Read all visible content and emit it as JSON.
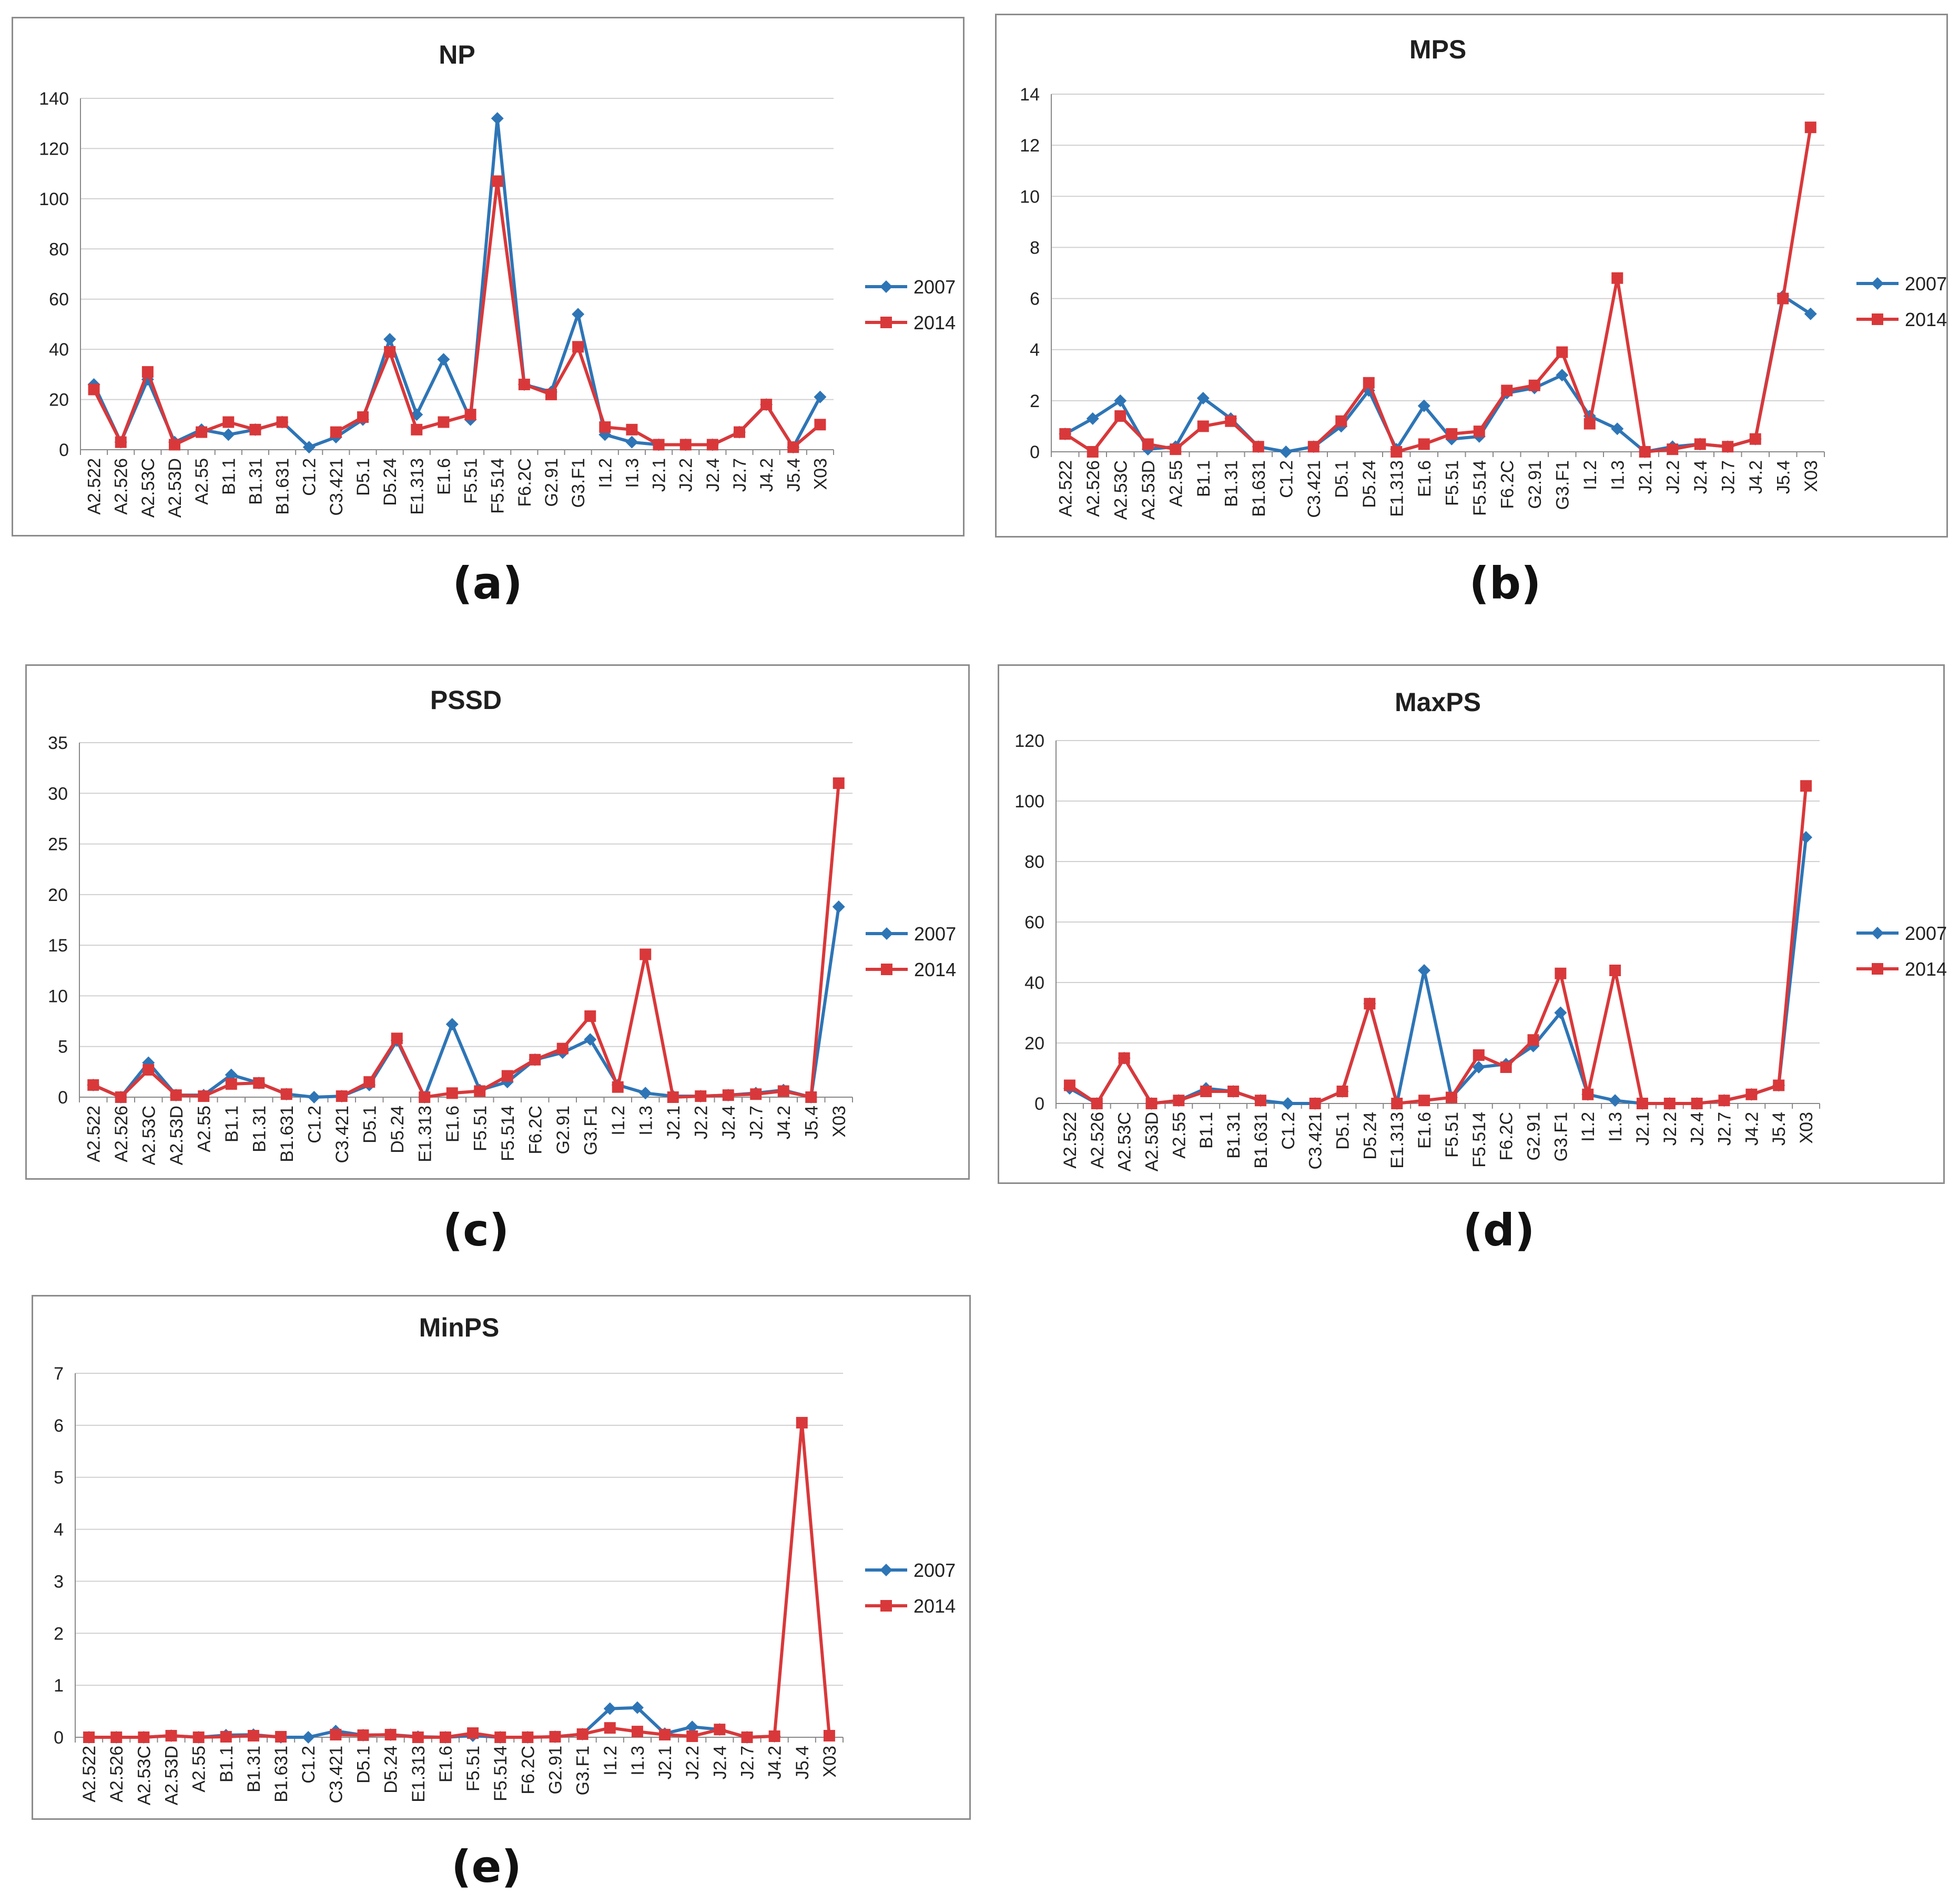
{
  "figure": {
    "captions": [
      "(a)",
      "(b)",
      "(c)",
      "(d)",
      "(e)"
    ]
  },
  "colors": {
    "series_2007": "#2e75b6",
    "series_2014": "#d9383a",
    "grid": "#d0d0d0",
    "axis": "#888888"
  },
  "chart_data": [
    {
      "type": "line",
      "title": "NP",
      "categories": [
        "A2.522",
        "A2.526",
        "A2.53C",
        "A2.53D",
        "A2.55",
        "B1.1",
        "B1.31",
        "B1.631",
        "C1.2",
        "C3.421",
        "D5.1",
        "D5.24",
        "E1.313",
        "E1.6",
        "F5.51",
        "F5.514",
        "F6.2C",
        "G2.91",
        "G3.F1",
        "I1.2",
        "I1.3",
        "J2.1",
        "J2.2",
        "J2.4",
        "J2.7",
        "J4.2",
        "J5.4",
        "X03"
      ],
      "ylim": [
        0,
        140
      ],
      "yticks": [
        "0",
        "20",
        "40",
        "60",
        "80",
        "100",
        "120",
        "140"
      ],
      "legend_position": "right",
      "series": [
        {
          "name": "2007",
          "values": [
            26,
            3,
            28,
            3,
            8,
            6,
            8,
            11,
            1,
            5,
            12,
            44,
            14,
            36,
            12,
            132,
            26,
            23,
            54,
            6,
            3,
            2,
            2,
            2,
            7,
            18,
            1,
            21
          ]
        },
        {
          "name": "2014",
          "values": [
            24,
            3,
            31,
            2,
            7,
            11,
            8,
            11,
            null,
            7,
            13,
            39,
            8,
            11,
            14,
            107,
            26,
            22,
            41,
            9,
            8,
            2,
            2,
            2,
            7,
            18,
            1,
            10
          ]
        }
      ]
    },
    {
      "type": "line",
      "title": "MPS",
      "categories": [
        "A2.522",
        "A2.526",
        "A2.53C",
        "A2.53D",
        "A2.55",
        "B1.1",
        "B1.31",
        "B1.631",
        "C1.2",
        "C3.421",
        "D5.1",
        "D5.24",
        "E1.313",
        "E1.6",
        "F5.51",
        "F5.514",
        "F6.2C",
        "G2.91",
        "G3.F1",
        "I1.2",
        "I1.3",
        "J2.1",
        "J2.2",
        "J2.4",
        "J2.7",
        "J4.2",
        "J5.4",
        "X03"
      ],
      "ylim": [
        0,
        14
      ],
      "yticks": [
        "0",
        "2",
        "4",
        "6",
        "8",
        "10",
        "12",
        "14"
      ],
      "legend_position": "right",
      "series": [
        {
          "name": "2007",
          "values": [
            0.7,
            1.3,
            2.0,
            0.1,
            0.2,
            2.1,
            1.3,
            0.2,
            0.0,
            0.2,
            1.0,
            2.4,
            0.1,
            1.8,
            0.5,
            0.6,
            2.3,
            2.5,
            3.0,
            1.4,
            0.9,
            0.0,
            0.2,
            0.3,
            0.2,
            0.5,
            6.1,
            5.4
          ]
        },
        {
          "name": "2014",
          "values": [
            0.7,
            0.0,
            1.4,
            0.3,
            0.1,
            1.0,
            1.2,
            0.2,
            null,
            0.2,
            1.2,
            2.7,
            0.0,
            0.3,
            0.7,
            0.8,
            2.4,
            2.6,
            3.9,
            1.1,
            6.8,
            0.0,
            0.1,
            0.3,
            0.2,
            0.5,
            6.0,
            12.7
          ]
        }
      ]
    },
    {
      "type": "line",
      "title": "PSSD",
      "categories": [
        "A2.522",
        "A2.526",
        "A2.53C",
        "A2.53D",
        "A2.55",
        "B1.1",
        "B1.31",
        "B1.631",
        "C1.2",
        "C3.421",
        "D5.1",
        "D5.24",
        "E1.313",
        "E1.6",
        "F5.51",
        "F5.514",
        "F6.2C",
        "G2.91",
        "G3.F1",
        "I1.2",
        "I1.3",
        "J2.1",
        "J2.2",
        "J2.4",
        "J2.7",
        "J4.2",
        "J5.4",
        "X03"
      ],
      "ylim": [
        0,
        35
      ],
      "yticks": [
        "0",
        "5",
        "10",
        "15",
        "20",
        "25",
        "30",
        "35"
      ],
      "legend_position": "right",
      "series": [
        {
          "name": "2007",
          "values": [
            1.2,
            0.0,
            3.4,
            0.2,
            0.2,
            2.2,
            1.4,
            0.3,
            0.0,
            0.1,
            1.2,
            5.6,
            0.0,
            7.2,
            0.7,
            1.5,
            3.7,
            4.4,
            5.7,
            1.2,
            0.4,
            0.1,
            0.1,
            0.2,
            0.4,
            0.7,
            0.0,
            18.8
          ]
        },
        {
          "name": "2014",
          "values": [
            1.2,
            0.0,
            2.7,
            0.2,
            0.1,
            1.3,
            1.4,
            0.3,
            null,
            0.1,
            1.5,
            5.8,
            0.0,
            0.4,
            0.6,
            2.1,
            3.7,
            4.8,
            8.0,
            1.0,
            14.1,
            0.0,
            0.1,
            0.2,
            0.3,
            0.6,
            0.0,
            31.0
          ]
        }
      ]
    },
    {
      "type": "line",
      "title": "MaxPS",
      "categories": [
        "A2.522",
        "A2.526",
        "A2.53C",
        "A2.53D",
        "A2.55",
        "B1.1",
        "B1.31",
        "B1.631",
        "C1.2",
        "C3.421",
        "D5.1",
        "D5.24",
        "E1.313",
        "E1.6",
        "F5.51",
        "F5.514",
        "F6.2C",
        "G2.91",
        "G3.F1",
        "I1.2",
        "I1.3",
        "J2.1",
        "J2.2",
        "J2.4",
        "J2.7",
        "J4.2",
        "J5.4",
        "X03"
      ],
      "ylim": [
        0,
        120
      ],
      "yticks": [
        "0",
        "20",
        "40",
        "60",
        "80",
        "100",
        "120"
      ],
      "legend_position": "right",
      "series": [
        {
          "name": "2007",
          "values": [
            5,
            0,
            15,
            0,
            1,
            5,
            4,
            1,
            0,
            0,
            4,
            33,
            0,
            44,
            2,
            12,
            13,
            19,
            30,
            3,
            1,
            0,
            0,
            0,
            1,
            3,
            6,
            88
          ]
        },
        {
          "name": "2014",
          "values": [
            6,
            0,
            15,
            0,
            1,
            4,
            4,
            1,
            null,
            0,
            4,
            33,
            0,
            1,
            2,
            16,
            12,
            21,
            43,
            3,
            44,
            0,
            0,
            0,
            1,
            3,
            6,
            105
          ]
        }
      ]
    },
    {
      "type": "line",
      "title": "MinPS",
      "categories": [
        "A2.522",
        "A2.526",
        "A2.53C",
        "A2.53D",
        "A2.55",
        "B1.1",
        "B1.31",
        "B1.631",
        "C1.2",
        "C3.421",
        "D5.1",
        "D5.24",
        "E1.313",
        "E1.6",
        "F5.51",
        "F5.514",
        "F6.2C",
        "G2.91",
        "G3.F1",
        "I1.2",
        "I1.3",
        "J2.1",
        "J2.2",
        "J2.4",
        "J2.7",
        "J4.2",
        "J5.4",
        "X03"
      ],
      "ylim": [
        0,
        7
      ],
      "yticks": [
        "0",
        "1",
        "2",
        "3",
        "4",
        "5",
        "6",
        "7"
      ],
      "legend_position": "right",
      "series": [
        {
          "name": "2007",
          "values": [
            0.0,
            0.0,
            0.0,
            0.03,
            0.0,
            0.04,
            0.05,
            0.0,
            0.0,
            0.12,
            0.04,
            0.05,
            0.01,
            0.0,
            0.03,
            0.0,
            0.0,
            0.01,
            0.06,
            0.55,
            0.57,
            0.07,
            0.2,
            0.15,
            0.0,
            0.02,
            null,
            null
          ]
        },
        {
          "name": "2014",
          "values": [
            0.0,
            0.0,
            0.0,
            0.03,
            0.0,
            0.01,
            0.03,
            0.01,
            null,
            0.05,
            0.04,
            0.05,
            0.0,
            0.0,
            0.08,
            0.0,
            0.0,
            0.01,
            0.06,
            0.18,
            0.11,
            0.05,
            0.02,
            0.15,
            0.0,
            0.02,
            6.05,
            0.03
          ]
        }
      ]
    }
  ]
}
